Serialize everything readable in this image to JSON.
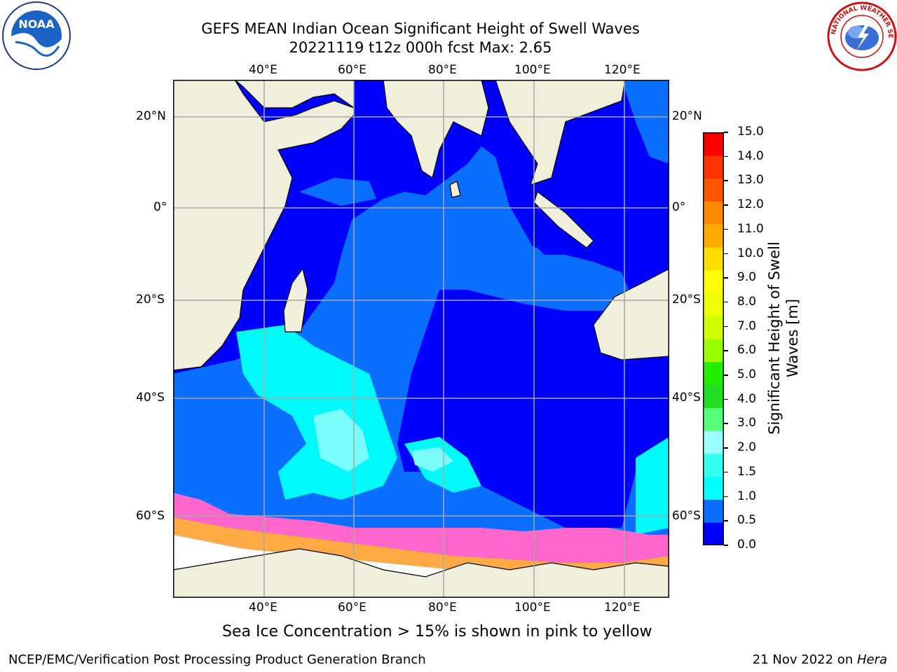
{
  "title": {
    "line1": "GEFS MEAN Indian Ocean Significant Height of Swell Waves",
    "line2": "20221119 t12z 000h fcst   Max: 2.65"
  },
  "logos": {
    "left_text": "NOAA",
    "right_text": "NATIONAL WEATHER SERVICE"
  },
  "map": {
    "lon_labels": [
      "40°E",
      "60°E",
      "80°E",
      "100°E",
      "120°E"
    ],
    "lat_labels": [
      "20°N",
      "0°",
      "20°S",
      "40°S",
      "60°S"
    ],
    "colors": {
      "land": "#efefdc",
      "deep": "#0000ff",
      "mid": "#0a6eff",
      "light": "#00fafa",
      "pale": "#7afcfc",
      "ice_pink": "#ff66cc",
      "ice_orange": "#ffaa44",
      "ice_yellow": "#ffee88",
      "grid": "#a8a8a8"
    }
  },
  "colorbar": {
    "ticks": [
      "0.0",
      "0.5",
      "1.0",
      "1.5",
      "2.0",
      "3.0",
      "4.0",
      "5.0",
      "6.0",
      "7.0",
      "8.0",
      "9.0",
      "10.0",
      "11.0",
      "12.0",
      "13.0",
      "14.0",
      "15.0"
    ],
    "colors": [
      "#0000ff",
      "#0a6eff",
      "#00ffff",
      "#33ffee",
      "#99ffff",
      "#55ff77",
      "#22dd22",
      "#22ee00",
      "#99ff00",
      "#ccff00",
      "#eeff00",
      "#ffff00",
      "#ffdd00",
      "#ffaa00",
      "#ff8800",
      "#ff5500",
      "#ff3300",
      "#ff0000"
    ],
    "label_line1": "Significant Height of Swell",
    "label_line2": "Waves [m]"
  },
  "caption": "Sea Ice Concentration > 15% is shown in pink to yellow",
  "footer": {
    "left": "NCEP/EMC/Verification Post Processing Product Generation Branch",
    "right_prefix": "21 Nov 2022 on ",
    "right_italic": "Hera"
  }
}
